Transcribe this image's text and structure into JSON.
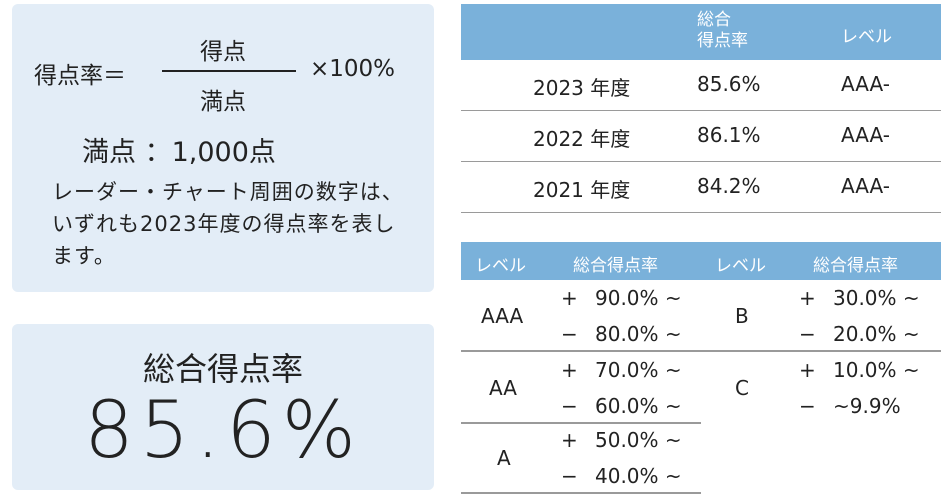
{
  "formula": {
    "lhs": "得点率＝",
    "numerator": "得点",
    "denominator": "満点",
    "multiplier": "×100%",
    "max_score": "満点 ：1,000点",
    "note": "レーダー・チャート周囲の数字は、いずれも2023年度の得点率を表します。"
  },
  "summary": {
    "label": "総合得点率",
    "value": "85.6%"
  },
  "yearly_table": {
    "header_score": "総合\n得点率",
    "header_level": "レベル",
    "rows": [
      {
        "year": "2023 年度",
        "score": "85.6%",
        "level": "AAA-"
      },
      {
        "year": "2022 年度",
        "score": "86.1%",
        "level": "AAA-"
      },
      {
        "year": "2021 年度",
        "score": "84.2%",
        "level": "AAA-"
      }
    ]
  },
  "level_table": {
    "headers": [
      "レベル",
      "総合得点率",
      "レベル",
      "総合得点率"
    ],
    "plus": "+",
    "minus": "−",
    "left": [
      {
        "level": "AAA",
        "plus_range": "90.0% ~",
        "minus_range": "80.0% ~"
      },
      {
        "level": "AA",
        "plus_range": "70.0% ~",
        "minus_range": "60.0% ~"
      },
      {
        "level": "A",
        "plus_range": "50.0% ~",
        "minus_range": "40.0% ~"
      }
    ],
    "right": [
      {
        "level": "B",
        "plus_range": "30.0% ~",
        "minus_range": "20.0% ~"
      },
      {
        "level": "C",
        "plus_range": "10.0% ~",
        "minus_range": "~9.9%"
      }
    ]
  },
  "colors": {
    "panel_bg": "#e3edf7",
    "header_bg": "#7ab1da",
    "rule": "#9a9a9a"
  }
}
